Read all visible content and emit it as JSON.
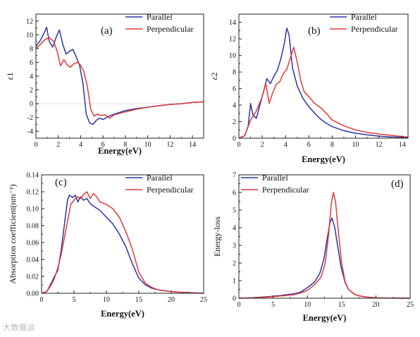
{
  "figure": {
    "watermark": "大数据谈"
  },
  "chart_data": [
    {
      "type": "line",
      "panel_label": "(a)",
      "xlabel": "Energy(eV)",
      "ylabel": "ε1",
      "xlim": [
        0,
        15
      ],
      "ylim": [
        -5,
        13
      ],
      "xticks": [
        0,
        2,
        4,
        6,
        8,
        10,
        12,
        14
      ],
      "yticks": [
        -4,
        -2,
        0,
        2,
        4,
        6,
        8,
        10,
        12
      ],
      "legend": "top-right",
      "grid": false,
      "series": [
        {
          "name": "Parallel",
          "color": "#2b35a3",
          "x": [
            0,
            0.4,
            0.8,
            0.95,
            1.2,
            1.5,
            1.8,
            2.1,
            2.4,
            2.7,
            3.0,
            3.3,
            3.6,
            3.9,
            4.2,
            4.5,
            4.8,
            5.1,
            5.4,
            5.7,
            6.0,
            6.4,
            7.0,
            8.0,
            9.0,
            10.0,
            11.0,
            12.0,
            13.0,
            14.0,
            15.0
          ],
          "y": [
            8.3,
            9.2,
            10.5,
            11.1,
            9.0,
            8.2,
            9.6,
            10.7,
            8.6,
            7.2,
            7.6,
            7.9,
            6.8,
            5.6,
            3.0,
            -1.5,
            -2.8,
            -3.0,
            -2.4,
            -2.1,
            -2.3,
            -1.9,
            -1.5,
            -1.0,
            -0.7,
            -0.5,
            -0.3,
            -0.1,
            0.0,
            0.2,
            0.3
          ]
        },
        {
          "name": "Perpendicular",
          "color": "#e03a3a",
          "x": [
            0,
            0.4,
            0.8,
            1.2,
            1.6,
            1.9,
            2.2,
            2.5,
            2.8,
            3.1,
            3.4,
            3.7,
            4.0,
            4.3,
            4.6,
            4.9,
            5.2,
            5.5,
            5.8,
            6.2,
            6.6,
            7.0,
            8.0,
            9.0,
            10.0,
            11.0,
            12.0,
            13.0,
            14.0,
            15.0
          ],
          "y": [
            8.0,
            8.6,
            9.3,
            9.6,
            9.0,
            7.6,
            5.5,
            6.4,
            5.6,
            5.3,
            5.8,
            6.0,
            5.6,
            4.6,
            2.5,
            -0.8,
            -1.8,
            -1.5,
            -1.7,
            -1.6,
            -2.1,
            -1.6,
            -1.2,
            -0.8,
            -0.5,
            -0.3,
            -0.1,
            0.0,
            0.2,
            0.3
          ]
        }
      ]
    },
    {
      "type": "line",
      "panel_label": "(b)",
      "xlabel": "Energy(eV)",
      "ylabel": "ε2",
      "xlim": [
        0,
        14.5
      ],
      "ylim": [
        0,
        15
      ],
      "xticks": [
        0,
        2,
        4,
        6,
        8,
        10,
        12,
        14
      ],
      "yticks": [
        0,
        2,
        4,
        6,
        8,
        10,
        12,
        14
      ],
      "legend": "top-right",
      "grid": false,
      "series": [
        {
          "name": "Parallel",
          "color": "#2b35a3",
          "x": [
            0,
            0.5,
            0.8,
            1.0,
            1.2,
            1.5,
            1.8,
            2.1,
            2.4,
            2.7,
            3.0,
            3.3,
            3.6,
            3.9,
            4.1,
            4.3,
            4.6,
            5.0,
            5.5,
            6.0,
            6.5,
            7.0,
            7.5,
            8.0,
            9.0,
            10.0,
            11.0,
            12.0,
            13.0,
            14.0,
            14.5
          ],
          "y": [
            0.0,
            0.3,
            1.5,
            4.2,
            2.8,
            2.4,
            4.0,
            5.6,
            7.2,
            6.6,
            7.5,
            8.2,
            9.6,
            11.5,
            13.3,
            12.5,
            8.5,
            6.3,
            4.8,
            3.8,
            3.0,
            2.3,
            1.8,
            1.4,
            0.9,
            0.6,
            0.4,
            0.25,
            0.15,
            0.1,
            0.05
          ]
        },
        {
          "name": "Perpendicular",
          "color": "#e03a3a",
          "x": [
            0,
            0.5,
            1.0,
            1.5,
            2.0,
            2.3,
            2.6,
            2.9,
            3.2,
            3.5,
            3.8,
            4.1,
            4.4,
            4.7,
            5.0,
            5.3,
            5.6,
            6.0,
            6.5,
            7.0,
            7.5,
            8.0,
            9.0,
            10.0,
            11.0,
            12.0,
            13.0,
            14.0,
            14.5
          ],
          "y": [
            0.0,
            0.3,
            2.2,
            3.3,
            5.0,
            6.6,
            4.2,
            5.5,
            6.5,
            6.8,
            7.8,
            8.3,
            9.6,
            11.0,
            9.2,
            7.0,
            5.6,
            5.0,
            4.2,
            3.7,
            3.0,
            2.2,
            1.5,
            1.0,
            0.7,
            0.5,
            0.35,
            0.2,
            0.15
          ]
        }
      ]
    },
    {
      "type": "line",
      "panel_label": "(c)",
      "xlabel": "Energy(eV)",
      "ylabel": "Absorption coefficient(nm⁻¹)",
      "xlim": [
        0,
        25
      ],
      "ylim": [
        0,
        0.14
      ],
      "xticks": [
        0,
        5,
        10,
        15,
        20,
        25
      ],
      "yticks": [
        0.0,
        0.02,
        0.04,
        0.06,
        0.08,
        0.1,
        0.12,
        0.14
      ],
      "legend": "top-right",
      "grid": false,
      "series": [
        {
          "name": "Parallel",
          "color": "#2b35a3",
          "x": [
            0,
            0.8,
            1.5,
            2.0,
            2.5,
            3.0,
            3.5,
            4.0,
            4.3,
            4.8,
            5.2,
            5.6,
            6.0,
            6.5,
            7.0,
            7.5,
            8.0,
            9.0,
            10.0,
            11.0,
            12.0,
            13.0,
            14.0,
            15.0,
            16.0,
            17.0,
            18.0,
            20.0,
            22.0,
            25.0
          ],
          "y": [
            0.0,
            0.002,
            0.012,
            0.02,
            0.027,
            0.05,
            0.08,
            0.11,
            0.116,
            0.113,
            0.116,
            0.108,
            0.114,
            0.11,
            0.112,
            0.106,
            0.103,
            0.098,
            0.09,
            0.082,
            0.07,
            0.055,
            0.035,
            0.018,
            0.01,
            0.006,
            0.004,
            0.002,
            0.001,
            0.0
          ]
        },
        {
          "name": "Perpendicular",
          "color": "#e03a3a",
          "x": [
            0,
            0.8,
            1.5,
            2.0,
            2.5,
            3.0,
            3.5,
            4.0,
            4.5,
            5.0,
            5.5,
            6.0,
            6.5,
            7.0,
            7.5,
            8.0,
            8.5,
            9.0,
            10.0,
            11.0,
            12.0,
            13.0,
            14.0,
            15.0,
            16.0,
            17.0,
            18.0,
            20.0,
            22.0,
            25.0
          ],
          "y": [
            0.0,
            0.002,
            0.01,
            0.018,
            0.03,
            0.045,
            0.065,
            0.085,
            0.105,
            0.11,
            0.114,
            0.112,
            0.117,
            0.12,
            0.112,
            0.118,
            0.114,
            0.108,
            0.105,
            0.1,
            0.09,
            0.073,
            0.052,
            0.025,
            0.012,
            0.007,
            0.004,
            0.002,
            0.001,
            0.0
          ]
        }
      ]
    },
    {
      "type": "line",
      "panel_label": "(d)",
      "xlabel": "Energy(eV)",
      "ylabel": "Energy-loss",
      "xlim": [
        0,
        25
      ],
      "ylim": [
        0,
        7
      ],
      "xticks": [
        0,
        5,
        10,
        15,
        20,
        25
      ],
      "yticks": [
        0,
        1,
        2,
        3,
        4,
        5,
        6,
        7
      ],
      "legend": "top-left",
      "grid": false,
      "series": [
        {
          "name": "Parallel",
          "color": "#2b35a3",
          "x": [
            0,
            2,
            4,
            6,
            8,
            9,
            10,
            11,
            11.8,
            12.4,
            12.9,
            13.3,
            13.6,
            14.0,
            14.4,
            14.9,
            15.5,
            16.0,
            17.0,
            18.0,
            19.0,
            20.0,
            22.0,
            25.0
          ],
          "y": [
            0.0,
            0.03,
            0.08,
            0.15,
            0.25,
            0.35,
            0.6,
            0.9,
            1.4,
            2.2,
            3.4,
            4.3,
            4.55,
            4.0,
            3.0,
            1.8,
            0.9,
            0.5,
            0.2,
            0.1,
            0.05,
            0.02,
            0.01,
            0.0
          ]
        },
        {
          "name": "Perpendicular",
          "color": "#e03a3a",
          "x": [
            0,
            2,
            4,
            6,
            8,
            9,
            10,
            11,
            12.0,
            12.6,
            13.1,
            13.5,
            13.8,
            14.1,
            14.5,
            15.0,
            15.5,
            16.0,
            17.0,
            18.0,
            19.0,
            20.0,
            22.0,
            25.0
          ],
          "y": [
            0.0,
            0.02,
            0.06,
            0.12,
            0.2,
            0.3,
            0.45,
            0.75,
            1.2,
            2.0,
            3.6,
            5.4,
            6.0,
            5.5,
            3.9,
            2.0,
            0.95,
            0.5,
            0.2,
            0.1,
            0.05,
            0.02,
            0.01,
            0.0
          ]
        }
      ]
    }
  ]
}
